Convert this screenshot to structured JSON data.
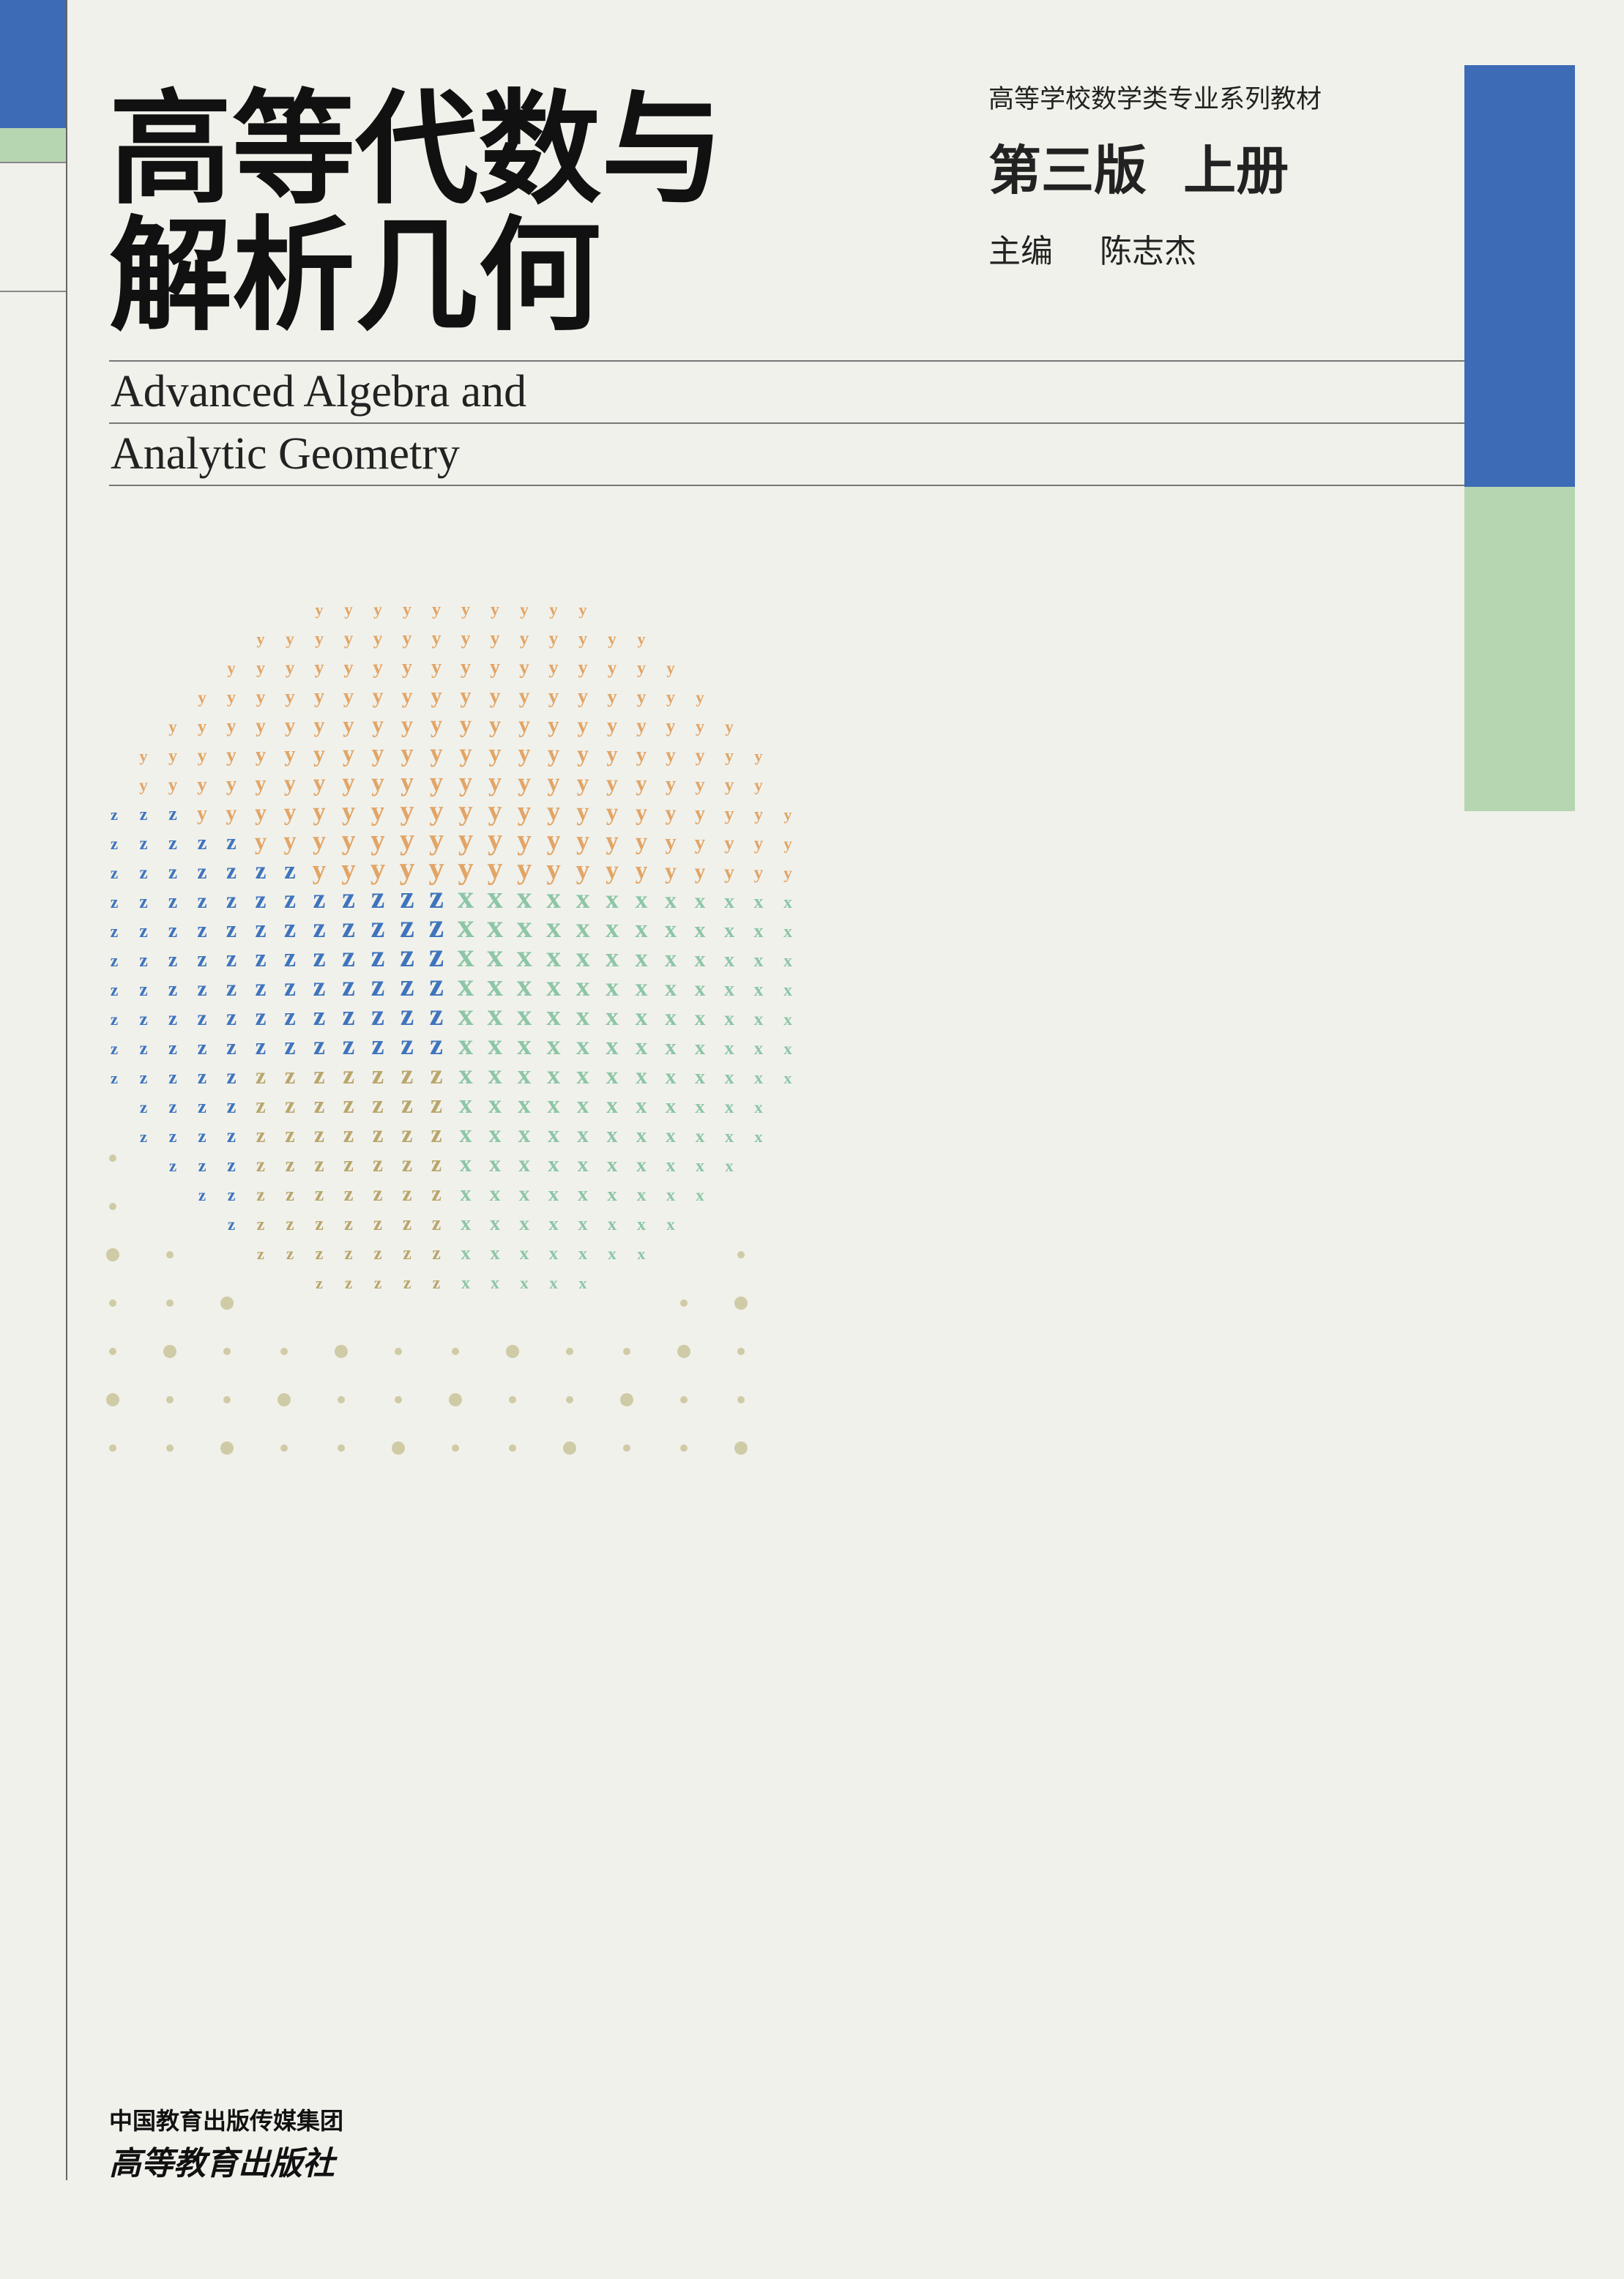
{
  "title": {
    "lines": [
      "高等代数与",
      "解析几何"
    ]
  },
  "english_title": {
    "lines": [
      "Advanced Algebra and",
      "Analytic Geometry"
    ]
  },
  "series": "高等学校数学类专业系列教材",
  "edition": "第三版  上册",
  "editor": {
    "role": "主编",
    "name": "陈志杰"
  },
  "publisher": {
    "group": "中国教育出版传媒集团",
    "name": "高等教育出版社"
  },
  "pattern": {
    "letters": [
      "x",
      "y",
      "z"
    ]
  }
}
